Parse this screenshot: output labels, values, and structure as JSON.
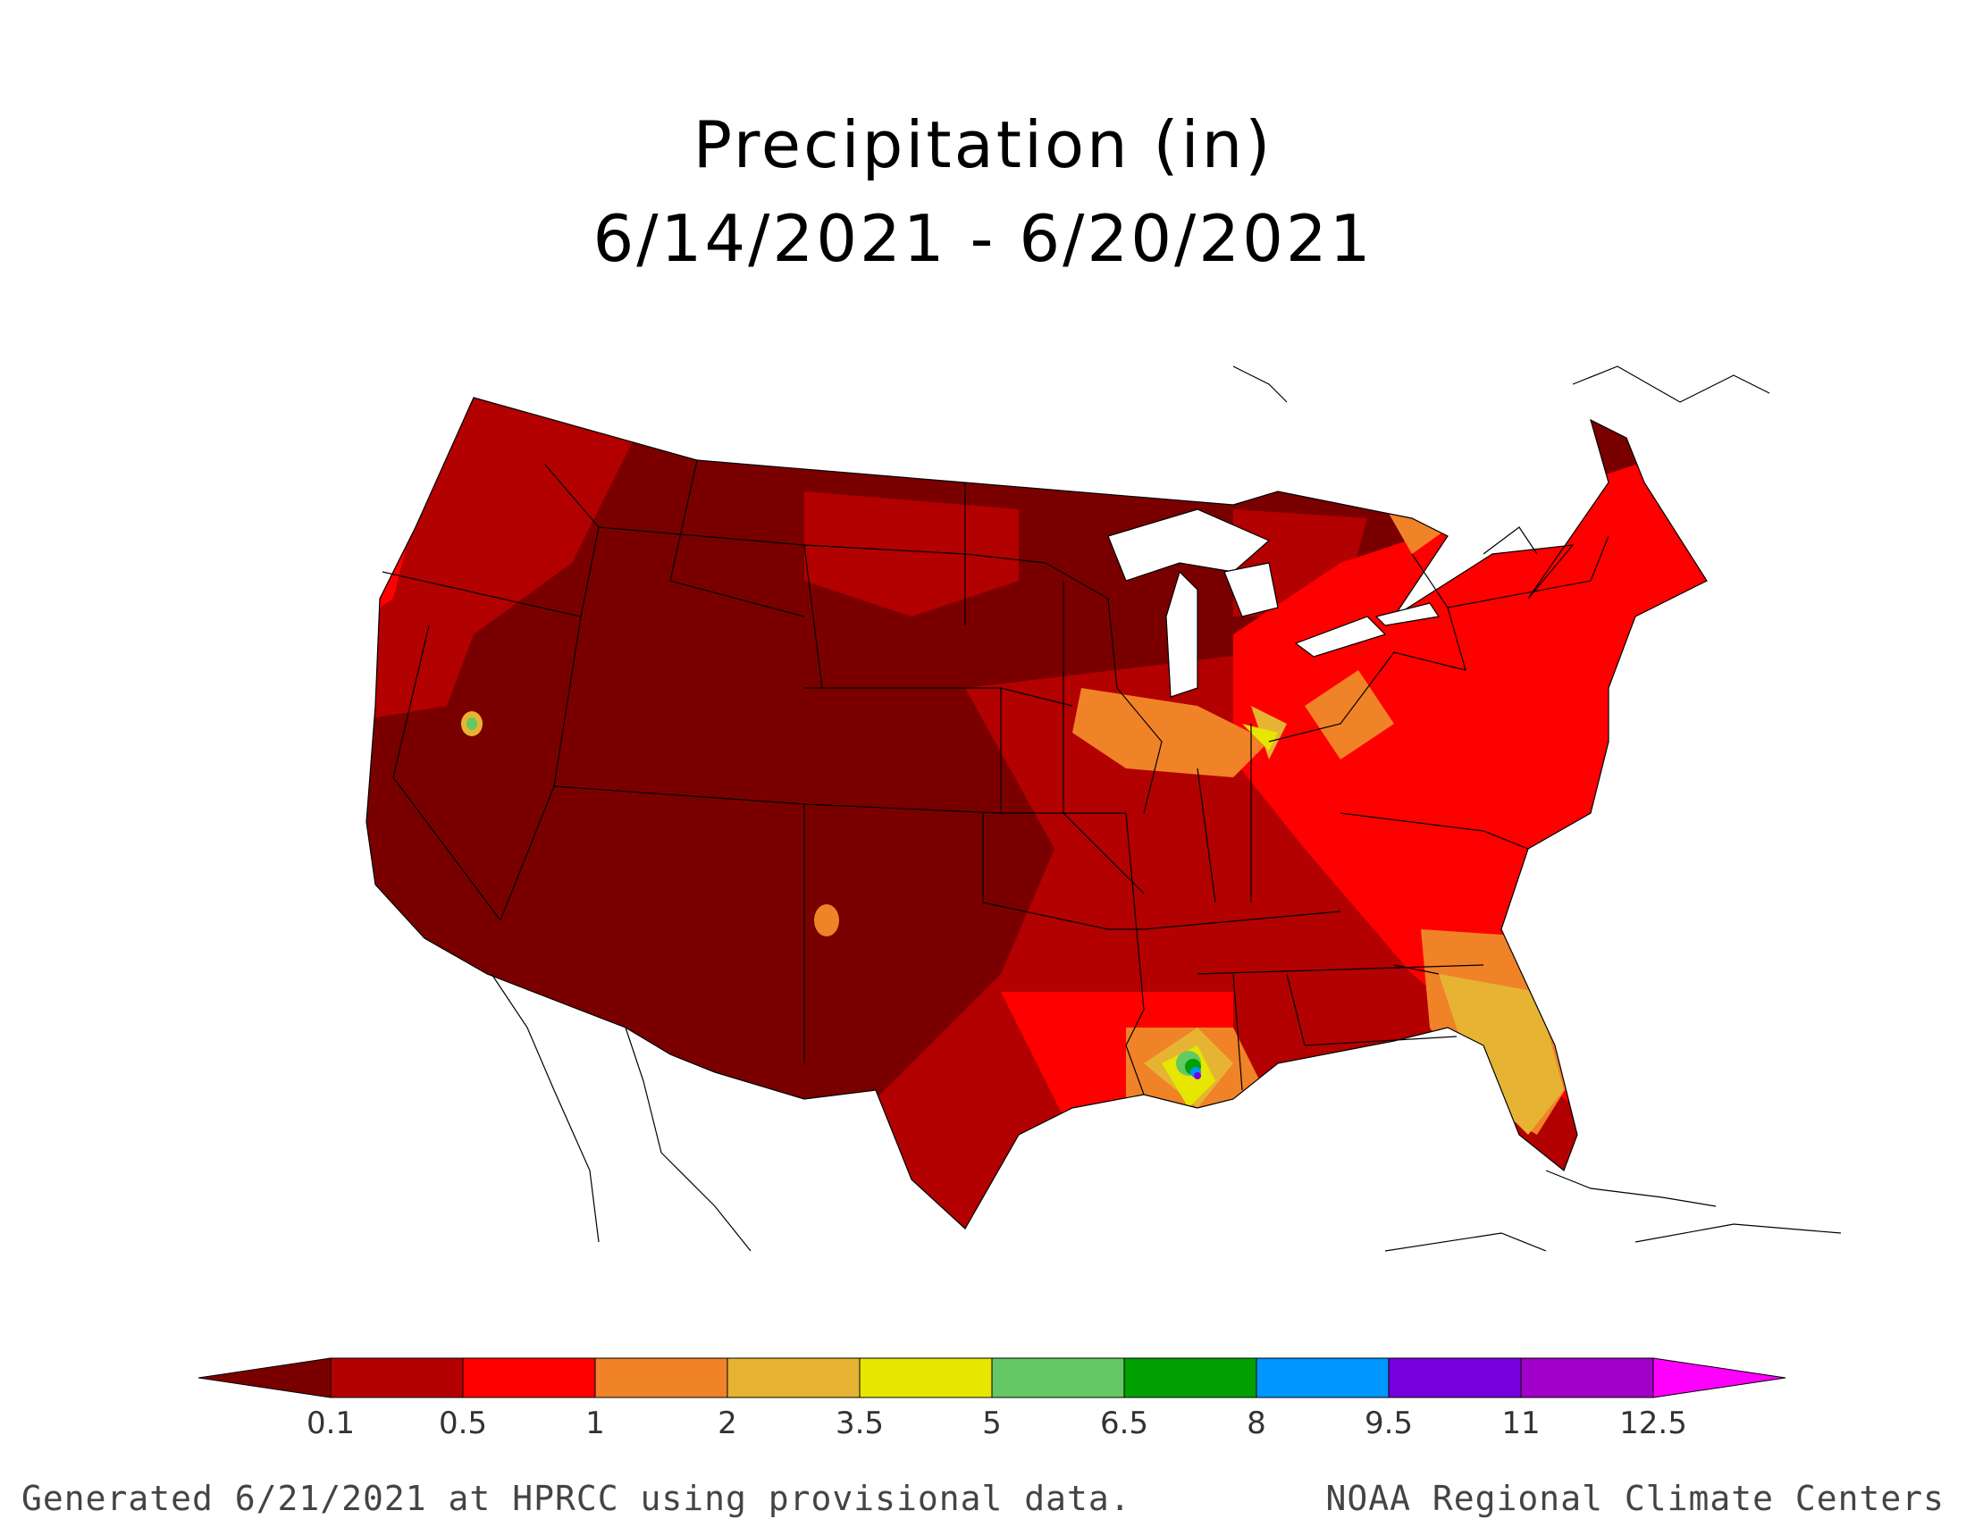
{
  "title": {
    "line1": "Precipitation (in)",
    "line2": "6/14/2021 - 6/20/2021"
  },
  "legend": {
    "colors": [
      "#7a0000",
      "#b30000",
      "#ff0000",
      "#f08228",
      "#e6b432",
      "#e6e600",
      "#64c864",
      "#00a000",
      "#0096ff",
      "#7800dc",
      "#a000c8",
      "#ff00ff"
    ],
    "labels": [
      "0.1",
      "0.5",
      "1",
      "2",
      "3.5",
      "5",
      "6.5",
      "8",
      "9.5",
      "11",
      "12.5"
    ]
  },
  "footer": {
    "left": "Generated 6/21/2021 at HPRCC using provisional data.",
    "right": "NOAA Regional Climate Centers"
  }
}
